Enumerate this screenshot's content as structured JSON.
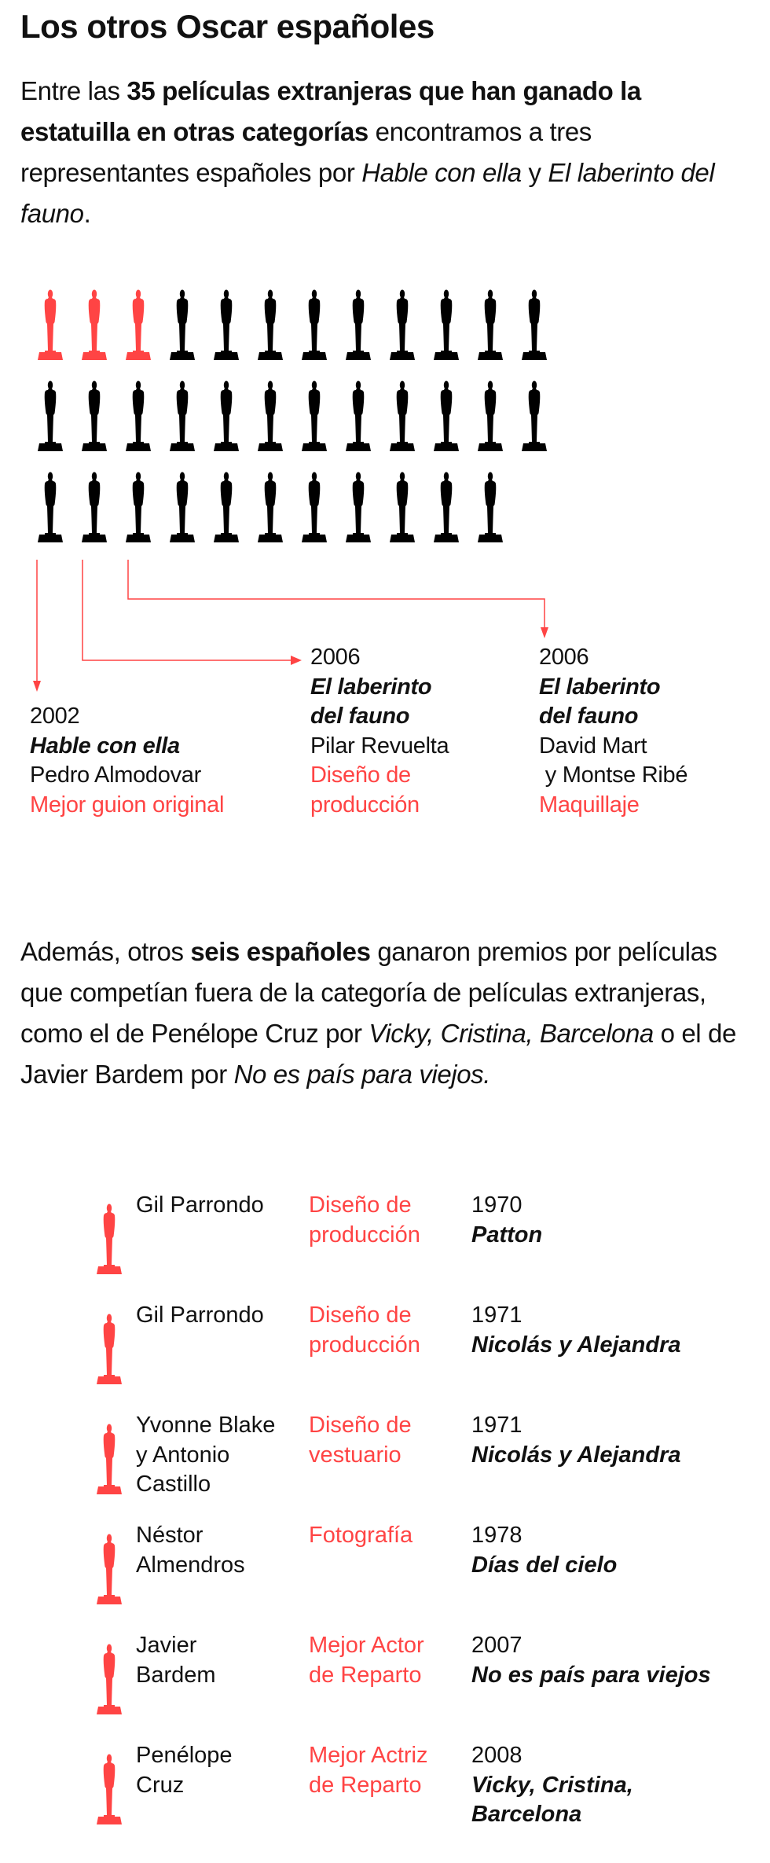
{
  "title": "Los otros Oscar españoles",
  "intro": {
    "t1": "Entre las ",
    "b1": "35 películas extranjeras que han ganado la estatuilla en otras categorías",
    "t2": " encontramos a tres representantes españoles por ",
    "i1": "Hable con ella",
    "t3": " y ",
    "i2": "El laberinto del fauno",
    "t4": "."
  },
  "oscars": {
    "total": 35,
    "per_row": 12,
    "highlighted": 3,
    "color_default": "#000000",
    "color_highlight": "#ff4444"
  },
  "highlights": [
    {
      "year": "2002",
      "film": "Hable con ella",
      "people": [
        "Pedro Almodovar"
      ],
      "category": [
        "Mejor guion original"
      ]
    },
    {
      "year": "2006",
      "film": [
        "El laberinto",
        "del fauno"
      ],
      "people": [
        "Pilar Revuelta"
      ],
      "category": [
        "Diseño de",
        "producción"
      ]
    },
    {
      "year": "2006",
      "film": [
        "El laberinto",
        "del fauno"
      ],
      "people": [
        "David Mart",
        " y Montse Ribé"
      ],
      "category": [
        "Maquillaje"
      ]
    }
  ],
  "para2": {
    "t1": "Además, otros ",
    "b1": "seis españoles",
    "t2": " ganaron premios por películas que competían fuera de la categoría de películas extranjeras, como el de Penélope Cruz por ",
    "i1": "Vicky, Cristina, Barcelona",
    "t3": " o el de Javier Bardem por ",
    "i2": "No es país para viejos."
  },
  "awards": [
    {
      "name": [
        "Gil Parrondo"
      ],
      "category": [
        "Diseño de",
        "producción"
      ],
      "year": "1970",
      "film": [
        "Patton"
      ]
    },
    {
      "name": [
        "Gil Parrondo"
      ],
      "category": [
        "Diseño de",
        "producción"
      ],
      "year": "1971",
      "film": [
        "Nicolás y Alejandra"
      ]
    },
    {
      "name": [
        "Yvonne Blake",
        "y Antonio",
        "Castillo"
      ],
      "category": [
        "Diseño de",
        "vestuario"
      ],
      "year": "1971",
      "film": [
        "Nicolás y Alejandra"
      ]
    },
    {
      "name": [
        "Néstor",
        "Almendros"
      ],
      "category": [
        "Fotografía"
      ],
      "year": "1978",
      "film": [
        "Días del cielo"
      ]
    },
    {
      "name": [
        "Javier",
        "Bardem"
      ],
      "category": [
        "Mejor Actor",
        "de Reparto"
      ],
      "year": "2007",
      "film": [
        "No es país para viejos"
      ]
    },
    {
      "name": [
        "Penélope",
        "Cruz"
      ],
      "category": [
        "Mejor Actriz",
        "de Reparto"
      ],
      "year": "2008",
      "film": [
        "Vicky, Cristina,",
        "Barcelona"
      ]
    }
  ]
}
